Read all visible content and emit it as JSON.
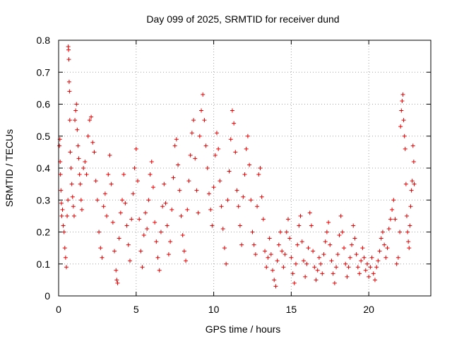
{
  "chart_data": {
    "type": "scatter",
    "title": "Day 099 of 2025, SRMTID for receiver dund",
    "xlabel": "GPS time / hours",
    "ylabel": "SRMTID / TECUs",
    "xlim": [
      0,
      24
    ],
    "ylim": [
      0,
      0.8
    ],
    "x_ticks": [
      0,
      5,
      10,
      15,
      20
    ],
    "x_tick_labels": [
      "0",
      "5",
      "10",
      "15",
      "20"
    ],
    "y_ticks": [
      0,
      0.1,
      0.2,
      0.3,
      0.4,
      0.5,
      0.6,
      0.7,
      0.8
    ],
    "y_tick_labels": [
      "0",
      "0.1",
      "0.2",
      "0.3",
      "0.4",
      "0.5",
      "0.6",
      "0.7",
      "0.8"
    ],
    "grid": true,
    "marker": "+",
    "color": "#e00000",
    "series": [
      {
        "name": "SRMTID",
        "points": [
          [
            0.05,
            0.47
          ],
          [
            0.08,
            0.49
          ],
          [
            0.1,
            0.42
          ],
          [
            0.12,
            0.38
          ],
          [
            0.15,
            0.33
          ],
          [
            0.18,
            0.29
          ],
          [
            0.2,
            0.25
          ],
          [
            0.25,
            0.27
          ],
          [
            0.3,
            0.22
          ],
          [
            0.35,
            0.2
          ],
          [
            0.4,
            0.15
          ],
          [
            0.45,
            0.12
          ],
          [
            0.5,
            0.09
          ],
          [
            0.55,
            0.25
          ],
          [
            0.6,
            0.3
          ],
          [
            0.62,
            0.78
          ],
          [
            0.64,
            0.77
          ],
          [
            0.66,
            0.74
          ],
          [
            0.68,
            0.67
          ],
          [
            0.7,
            0.64
          ],
          [
            0.72,
            0.55
          ],
          [
            0.75,
            0.45
          ],
          [
            0.8,
            0.4
          ],
          [
            0.85,
            0.35
          ],
          [
            0.9,
            0.31
          ],
          [
            0.95,
            0.28
          ],
          [
            1.0,
            0.25
          ],
          [
            1.05,
            0.55
          ],
          [
            1.1,
            0.58
          ],
          [
            1.15,
            0.6
          ],
          [
            1.2,
            0.52
          ],
          [
            1.25,
            0.47
          ],
          [
            1.3,
            0.43
          ],
          [
            1.35,
            0.38
          ],
          [
            1.4,
            0.35
          ],
          [
            1.45,
            0.3
          ],
          [
            1.5,
            0.27
          ],
          [
            1.6,
            0.4
          ],
          [
            1.7,
            0.42
          ],
          [
            1.8,
            0.38
          ],
          [
            1.9,
            0.5
          ],
          [
            2.0,
            0.55
          ],
          [
            2.1,
            0.56
          ],
          [
            2.2,
            0.48
          ],
          [
            2.3,
            0.45
          ],
          [
            2.4,
            0.36
          ],
          [
            2.5,
            0.3
          ],
          [
            2.6,
            0.2
          ],
          [
            2.7,
            0.15
          ],
          [
            2.8,
            0.12
          ],
          [
            2.9,
            0.28
          ],
          [
            3.0,
            0.32
          ],
          [
            3.1,
            0.25
          ],
          [
            3.2,
            0.38
          ],
          [
            3.3,
            0.44
          ],
          [
            3.4,
            0.35
          ],
          [
            3.5,
            0.23
          ],
          [
            3.6,
            0.14
          ],
          [
            3.7,
            0.08
          ],
          [
            3.75,
            0.05
          ],
          [
            3.8,
            0.04
          ],
          [
            3.9,
            0.18
          ],
          [
            4.0,
            0.26
          ],
          [
            4.1,
            0.3
          ],
          [
            4.2,
            0.38
          ],
          [
            4.3,
            0.29
          ],
          [
            4.4,
            0.22
          ],
          [
            4.5,
            0.16
          ],
          [
            4.6,
            0.11
          ],
          [
            4.7,
            0.24
          ],
          [
            4.8,
            0.32
          ],
          [
            4.9,
            0.4
          ],
          [
            5.0,
            0.46
          ],
          [
            5.1,
            0.36
          ],
          [
            5.2,
            0.24
          ],
          [
            5.3,
            0.14
          ],
          [
            5.4,
            0.09
          ],
          [
            5.5,
            0.19
          ],
          [
            5.6,
            0.26
          ],
          [
            5.7,
            0.21
          ],
          [
            5.8,
            0.3
          ],
          [
            5.9,
            0.38
          ],
          [
            6.0,
            0.42
          ],
          [
            6.1,
            0.34
          ],
          [
            6.2,
            0.23
          ],
          [
            6.3,
            0.17
          ],
          [
            6.4,
            0.12
          ],
          [
            6.5,
            0.08
          ],
          [
            6.6,
            0.2
          ],
          [
            6.7,
            0.28
          ],
          [
            6.8,
            0.35
          ],
          [
            6.9,
            0.29
          ],
          [
            7.0,
            0.22
          ],
          [
            7.1,
            0.13
          ],
          [
            7.2,
            0.17
          ],
          [
            7.3,
            0.27
          ],
          [
            7.4,
            0.37
          ],
          [
            7.5,
            0.47
          ],
          [
            7.6,
            0.49
          ],
          [
            7.7,
            0.41
          ],
          [
            7.8,
            0.33
          ],
          [
            7.9,
            0.25
          ],
          [
            8.0,
            0.19
          ],
          [
            8.1,
            0.14
          ],
          [
            8.2,
            0.11
          ],
          [
            8.3,
            0.27
          ],
          [
            8.4,
            0.36
          ],
          [
            8.5,
            0.44
          ],
          [
            8.6,
            0.51
          ],
          [
            8.7,
            0.55
          ],
          [
            8.8,
            0.43
          ],
          [
            8.9,
            0.33
          ],
          [
            9.0,
            0.26
          ],
          [
            9.1,
            0.5
          ],
          [
            9.2,
            0.58
          ],
          [
            9.3,
            0.63
          ],
          [
            9.4,
            0.55
          ],
          [
            9.5,
            0.47
          ],
          [
            9.6,
            0.4
          ],
          [
            9.7,
            0.32
          ],
          [
            9.8,
            0.27
          ],
          [
            9.9,
            0.22
          ],
          [
            10.0,
            0.34
          ],
          [
            10.1,
            0.44
          ],
          [
            10.2,
            0.51
          ],
          [
            10.3,
            0.46
          ],
          [
            10.4,
            0.36
          ],
          [
            10.5,
            0.28
          ],
          [
            10.6,
            0.21
          ],
          [
            10.7,
            0.15
          ],
          [
            10.8,
            0.1
          ],
          [
            10.9,
            0.3
          ],
          [
            11.0,
            0.39
          ],
          [
            11.1,
            0.49
          ],
          [
            11.2,
            0.58
          ],
          [
            11.3,
            0.54
          ],
          [
            11.4,
            0.45
          ],
          [
            11.5,
            0.33
          ],
          [
            11.6,
            0.28
          ],
          [
            11.7,
            0.22
          ],
          [
            11.8,
            0.16
          ],
          [
            11.9,
            0.31
          ],
          [
            12.0,
            0.38
          ],
          [
            12.1,
            0.46
          ],
          [
            12.2,
            0.5
          ],
          [
            12.3,
            0.41
          ],
          [
            12.4,
            0.3
          ],
          [
            12.5,
            0.2
          ],
          [
            12.6,
            0.16
          ],
          [
            12.7,
            0.13
          ],
          [
            12.8,
            0.28
          ],
          [
            12.9,
            0.38
          ],
          [
            13.0,
            0.4
          ],
          [
            13.1,
            0.31
          ],
          [
            13.2,
            0.24
          ],
          [
            13.3,
            0.14
          ],
          [
            13.4,
            0.09
          ],
          [
            13.5,
            0.12
          ],
          [
            13.6,
            0.18
          ],
          [
            13.7,
            0.13
          ],
          [
            13.8,
            0.08
          ],
          [
            13.9,
            0.05
          ],
          [
            14.0,
            0.03
          ],
          [
            14.1,
            0.11
          ],
          [
            14.2,
            0.16
          ],
          [
            14.3,
            0.2
          ],
          [
            14.4,
            0.14
          ],
          [
            14.5,
            0.09
          ],
          [
            14.6,
            0.13
          ],
          [
            14.7,
            0.2
          ],
          [
            14.8,
            0.24
          ],
          [
            14.9,
            0.18
          ],
          [
            15.0,
            0.12
          ],
          [
            15.1,
            0.07
          ],
          [
            15.2,
            0.04
          ],
          [
            15.3,
            0.1
          ],
          [
            15.4,
            0.16
          ],
          [
            15.5,
            0.22
          ],
          [
            15.6,
            0.25
          ],
          [
            15.7,
            0.17
          ],
          [
            15.8,
            0.11
          ],
          [
            15.9,
            0.06
          ],
          [
            16.0,
            0.1
          ],
          [
            16.1,
            0.15
          ],
          [
            16.2,
            0.26
          ],
          [
            16.3,
            0.22
          ],
          [
            16.4,
            0.14
          ],
          [
            16.5,
            0.09
          ],
          [
            16.6,
            0.05
          ],
          [
            16.7,
            0.08
          ],
          [
            16.8,
            0.12
          ],
          [
            16.9,
            0.1
          ],
          [
            17.0,
            0.07
          ],
          [
            17.1,
            0.13
          ],
          [
            17.2,
            0.17
          ],
          [
            17.3,
            0.2
          ],
          [
            17.4,
            0.23
          ],
          [
            17.5,
            0.16
          ],
          [
            17.6,
            0.11
          ],
          [
            17.7,
            0.07
          ],
          [
            17.8,
            0.04
          ],
          [
            17.9,
            0.09
          ],
          [
            18.0,
            0.13
          ],
          [
            18.1,
            0.19
          ],
          [
            18.2,
            0.25
          ],
          [
            18.3,
            0.2
          ],
          [
            18.4,
            0.15
          ],
          [
            18.5,
            0.1
          ],
          [
            18.6,
            0.06
          ],
          [
            18.7,
            0.09
          ],
          [
            18.8,
            0.12
          ],
          [
            18.9,
            0.16
          ],
          [
            19.0,
            0.22
          ],
          [
            19.1,
            0.18
          ],
          [
            19.2,
            0.13
          ],
          [
            19.3,
            0.09
          ],
          [
            19.4,
            0.07
          ],
          [
            19.5,
            0.11
          ],
          [
            19.6,
            0.15
          ],
          [
            19.7,
            0.12
          ],
          [
            19.8,
            0.08
          ],
          [
            19.9,
            0.1
          ],
          [
            20.0,
            0.06
          ],
          [
            20.1,
            0.09
          ],
          [
            20.2,
            0.12
          ],
          [
            20.3,
            0.07
          ],
          [
            20.4,
            0.05
          ],
          [
            20.5,
            0.09
          ],
          [
            20.6,
            0.11
          ],
          [
            20.7,
            0.14
          ],
          [
            20.8,
            0.18
          ],
          [
            20.9,
            0.2
          ],
          [
            21.0,
            0.16
          ],
          [
            21.1,
            0.12
          ],
          [
            21.2,
            0.15
          ],
          [
            21.3,
            0.21
          ],
          [
            21.4,
            0.24
          ],
          [
            21.5,
            0.27
          ],
          [
            21.6,
            0.3
          ],
          [
            21.7,
            0.24
          ],
          [
            21.8,
            0.1
          ],
          [
            21.9,
            0.12
          ],
          [
            22.0,
            0.2
          ],
          [
            22.05,
            0.53
          ],
          [
            22.1,
            0.58
          ],
          [
            22.15,
            0.61
          ],
          [
            22.2,
            0.63
          ],
          [
            22.25,
            0.55
          ],
          [
            22.3,
            0.5
          ],
          [
            22.35,
            0.46
          ],
          [
            22.4,
            0.35
          ],
          [
            22.45,
            0.25
          ],
          [
            22.5,
            0.2
          ],
          [
            22.55,
            0.17
          ],
          [
            22.6,
            0.15
          ],
          [
            22.65,
            0.22
          ],
          [
            22.7,
            0.28
          ],
          [
            22.75,
            0.33
          ],
          [
            22.8,
            0.36
          ],
          [
            22.85,
            0.47
          ],
          [
            22.9,
            0.42
          ],
          [
            22.93,
            0.35
          ]
        ]
      }
    ]
  }
}
